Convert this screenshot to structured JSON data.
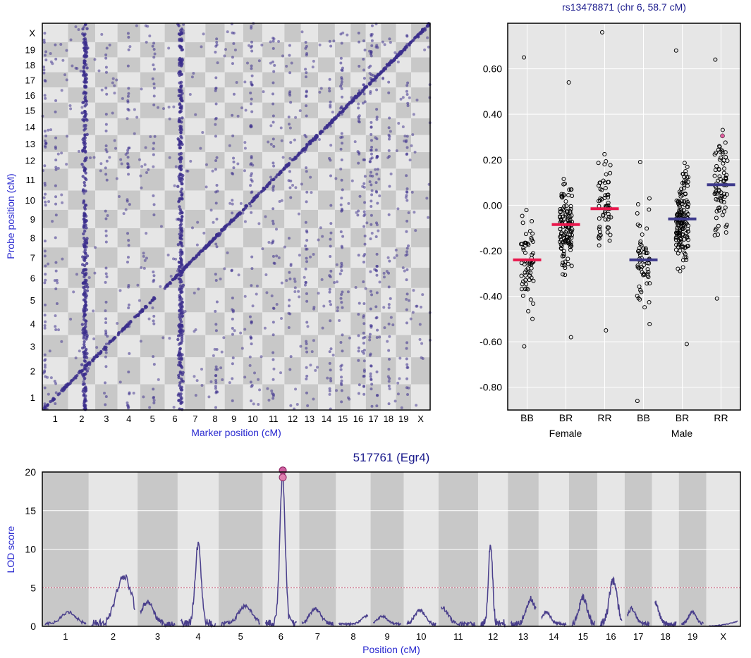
{
  "chart_data": [
    {
      "type": "scatter",
      "name": "eqtl-map",
      "xlabel": "Marker position (cM)",
      "ylabel": "Probe position (cM)",
      "chromosomes": [
        "1",
        "2",
        "3",
        "4",
        "5",
        "6",
        "7",
        "8",
        "9",
        "10",
        "11",
        "12",
        "13",
        "14",
        "15",
        "16",
        "17",
        "18",
        "19",
        "X"
      ],
      "chr_lengths": [
        95,
        100,
        82,
        84,
        90,
        75,
        75,
        71,
        68,
        71,
        81,
        61,
        63,
        62,
        58,
        56,
        56,
        55,
        56,
        70
      ],
      "x_chr_tick_labels": [
        "1",
        "2",
        "3",
        "4",
        "5",
        "6",
        "7",
        "8",
        "9",
        "10",
        "11",
        "12",
        "13",
        "14",
        "15",
        "16",
        "17",
        "18",
        "19",
        "X"
      ],
      "y_chr_tick_labels": [
        "1",
        "2",
        "3",
        "4",
        "5",
        "6",
        "7",
        "8",
        "9",
        "10",
        "11",
        "12",
        "13",
        "14",
        "15",
        "16",
        "17",
        "18",
        "19",
        "X"
      ],
      "cis_diagonal": "probes cluster along the diagonal (cis-eQTL)",
      "trans_bands": [
        {
          "chr": "2",
          "pos": 62
        },
        {
          "chr": "6",
          "pos": 58.7
        }
      ],
      "colors": {
        "points": "#3b2e8c",
        "checker_dark": "#c8c8c8",
        "checker_light": "#e6e6e6"
      }
    },
    {
      "type": "scatter",
      "name": "phenotype-by-genotype",
      "title": "rs13478871 (chr 6, 58.7 cM)",
      "ylim": [
        -0.9,
        0.8
      ],
      "yticks": [
        0.6,
        0.4,
        0.2,
        0.0,
        -0.2,
        -0.4,
        -0.6,
        -0.8
      ],
      "ytick_labels": [
        "0.60",
        "0.40",
        "0.20",
        "0.00",
        "-0.20",
        "-0.40",
        "-0.60",
        "-0.80"
      ],
      "categories": [
        "BB",
        "BR",
        "RR",
        "BB",
        "BR",
        "RR"
      ],
      "groups": [
        "Female",
        "Male"
      ],
      "means": [
        -0.24,
        -0.085,
        -0.015,
        -0.24,
        -0.06,
        0.09
      ],
      "mean_colors": [
        "#e8174c",
        "#e8174c",
        "#e8174c",
        "#3e3a8c",
        "#3e3a8c",
        "#3e3a8c"
      ],
      "points_per_group": [
        62,
        120,
        60,
        60,
        150,
        75
      ],
      "ranges": [
        [
          -0.62,
          0.65
        ],
        [
          -0.58,
          0.54
        ],
        [
          -0.55,
          0.76
        ],
        [
          -0.86,
          0.19
        ],
        [
          -0.61,
          0.68
        ],
        [
          -0.41,
          0.64
        ]
      ],
      "highlight": {
        "group": 5,
        "value": 0.305,
        "color": "#e060a0"
      }
    },
    {
      "type": "line",
      "name": "lod-curve",
      "title": "517761 (Egr4)",
      "xlabel": "Position (cM)",
      "ylabel": "LOD score",
      "ylim": [
        0,
        20
      ],
      "yticks": [
        0,
        5,
        10,
        15,
        20
      ],
      "threshold": 5,
      "x_chr_tick_labels": [
        "1",
        "2",
        "3",
        "4",
        "5",
        "6",
        "7",
        "8",
        "9",
        "10",
        "11",
        "12",
        "13",
        "14",
        "15",
        "16",
        "17",
        "18",
        "19",
        "X"
      ],
      "chr_widths": [
        95,
        100,
        82,
        84,
        90,
        75,
        75,
        71,
        68,
        71,
        81,
        61,
        63,
        62,
        58,
        56,
        56,
        55,
        56,
        70
      ],
      "peaks": [
        {
          "chr": "1",
          "lod": 1.5
        },
        {
          "chr": "2",
          "lod": 6.2
        },
        {
          "chr": "3",
          "lod": 2.8
        },
        {
          "chr": "4",
          "lod": 10.3
        },
        {
          "chr": "5",
          "lod": 2.3
        },
        {
          "chr": "6",
          "lod": 19.3
        },
        {
          "chr": "7",
          "lod": 2.0
        },
        {
          "chr": "8",
          "lod": 1.0
        },
        {
          "chr": "9",
          "lod": 1.0
        },
        {
          "chr": "10",
          "lod": 1.8
        },
        {
          "chr": "11",
          "lod": 2.2
        },
        {
          "chr": "12",
          "lod": 10.5
        },
        {
          "chr": "13",
          "lod": 3.3
        },
        {
          "chr": "14",
          "lod": 1.5
        },
        {
          "chr": "15",
          "lod": 3.4
        },
        {
          "chr": "16",
          "lod": 5.7
        },
        {
          "chr": "17",
          "lod": 2.0
        },
        {
          "chr": "18",
          "lod": 2.8
        },
        {
          "chr": "19",
          "lod": 1.5
        },
        {
          "chr": "X",
          "lod": 0.6
        }
      ],
      "marker": {
        "chr": "6",
        "pos": 58.7,
        "lod": 19.3,
        "second_lod": 20.2
      },
      "colors": {
        "line": "#4a3f8c",
        "threshold": "#c04060",
        "marker": "#e080b0"
      }
    }
  ]
}
